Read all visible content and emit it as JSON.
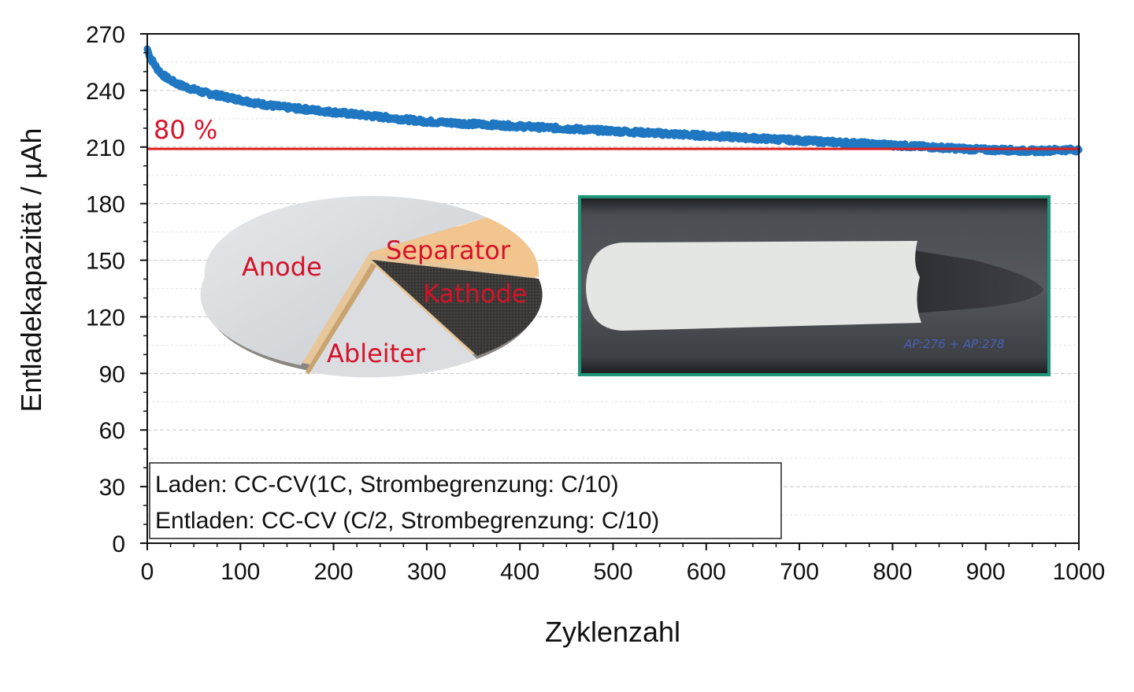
{
  "chart_data": {
    "type": "scatter",
    "xlabel": "Zyklenzahl",
    "ylabel": "Entladekapazität / µAh",
    "xlim": [
      0,
      1000
    ],
    "ylim": [
      0,
      270
    ],
    "x_ticks": [
      "0",
      "100",
      "200",
      "300",
      "400",
      "500",
      "600",
      "700",
      "800",
      "900",
      "1000"
    ],
    "y_ticks": [
      "0",
      "30",
      "60",
      "90",
      "120",
      "150",
      "180",
      "210",
      "240",
      "270"
    ],
    "grid": "horizontal dashed",
    "series": [
      {
        "color": "#1f77c2",
        "points": [
          [
            0,
            262
          ],
          [
            2,
            259
          ],
          [
            5,
            256
          ],
          [
            10,
            252
          ],
          [
            15,
            249
          ],
          [
            20,
            247
          ],
          [
            30,
            244
          ],
          [
            40,
            242
          ],
          [
            50,
            240.5
          ],
          [
            60,
            239
          ],
          [
            70,
            238
          ],
          [
            80,
            237
          ],
          [
            90,
            236
          ],
          [
            100,
            235
          ],
          [
            120,
            233
          ],
          [
            140,
            231.5
          ],
          [
            160,
            230.5
          ],
          [
            180,
            229.5
          ],
          [
            200,
            228.5
          ],
          [
            220,
            227.5
          ],
          [
            240,
            226.5
          ],
          [
            260,
            225.5
          ],
          [
            280,
            224.5
          ],
          [
            300,
            223.5
          ],
          [
            320,
            223
          ],
          [
            340,
            222.5
          ],
          [
            360,
            222
          ],
          [
            380,
            221.5
          ],
          [
            400,
            221
          ],
          [
            420,
            220.5
          ],
          [
            440,
            220
          ],
          [
            460,
            219.5
          ],
          [
            480,
            219
          ],
          [
            500,
            218.5
          ],
          [
            520,
            218
          ],
          [
            540,
            217.5
          ],
          [
            560,
            217
          ],
          [
            580,
            216.5
          ],
          [
            600,
            216
          ],
          [
            620,
            215.5
          ],
          [
            640,
            215
          ],
          [
            660,
            214.5
          ],
          [
            680,
            214
          ],
          [
            700,
            213.5
          ],
          [
            720,
            213
          ],
          [
            740,
            212.5
          ],
          [
            760,
            212
          ],
          [
            780,
            211.5
          ],
          [
            800,
            211
          ],
          [
            820,
            210.5
          ],
          [
            840,
            210
          ],
          [
            860,
            209.5
          ],
          [
            880,
            209
          ],
          [
            900,
            208.5
          ],
          [
            920,
            208.5
          ],
          [
            940,
            208
          ],
          [
            960,
            208
          ],
          [
            980,
            208.5
          ],
          [
            1000,
            208.5
          ]
        ]
      }
    ],
    "reference_line": {
      "y": 209,
      "color": "#e0201e",
      "label": "80 %"
    },
    "legend_lines": [
      "Laden: CC-CV(1C, Strombegrenzung: C/10)",
      "Entladen: CC-CV (C/2, Strombegrenzung: C/10)"
    ]
  },
  "inset_pie": {
    "labels": [
      "Anode",
      "Separator",
      "Kathode",
      "Ableiter"
    ],
    "label_color": "#d4132a"
  },
  "inset_photo": {
    "handwritten_note": "AP:276 + AP:278",
    "frame_color": "#1e9478"
  }
}
